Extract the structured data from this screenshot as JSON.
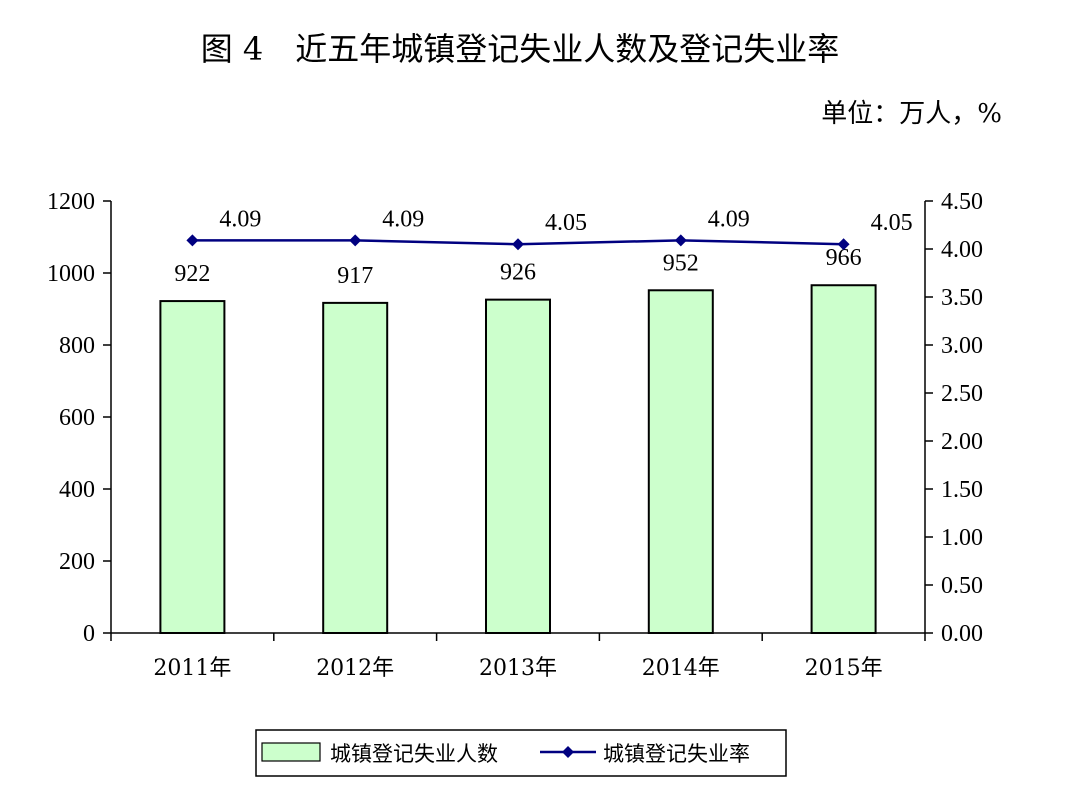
{
  "title": "图 4　近五年城镇登记失业人数及登记失业率",
  "unit": "单位：万人，%",
  "colors": {
    "bar_fill": "#ccffcc",
    "bar_stroke": "#000000",
    "line": "#000080",
    "axis": "#000000"
  },
  "chart_data": {
    "type": "bar",
    "categories": [
      "2011年",
      "2012年",
      "2013年",
      "2014年",
      "2015年"
    ],
    "series": [
      {
        "name": "城镇登记失业人数",
        "type": "bar",
        "axis": "left",
        "values": [
          922,
          917,
          926,
          952,
          966
        ],
        "labels": [
          "922",
          "917",
          "926",
          "952",
          "966"
        ]
      },
      {
        "name": "城镇登记失业率",
        "type": "line",
        "axis": "right",
        "marker": "diamond",
        "values": [
          4.09,
          4.09,
          4.05,
          4.09,
          4.05
        ],
        "labels": [
          "4.09",
          "4.09",
          "4.05",
          "4.09",
          "4.05"
        ]
      }
    ],
    "y_left": {
      "min": 0,
      "max": 1200,
      "ticks": [
        "0",
        "200",
        "400",
        "600",
        "800",
        "1000",
        "1200"
      ]
    },
    "y_right": {
      "min": 0,
      "max": 4.5,
      "ticks": [
        "0.00",
        "0.50",
        "1.00",
        "1.50",
        "2.00",
        "2.50",
        "3.00",
        "3.50",
        "4.00",
        "4.50"
      ]
    },
    "grid": false,
    "legend_position": "bottom"
  }
}
